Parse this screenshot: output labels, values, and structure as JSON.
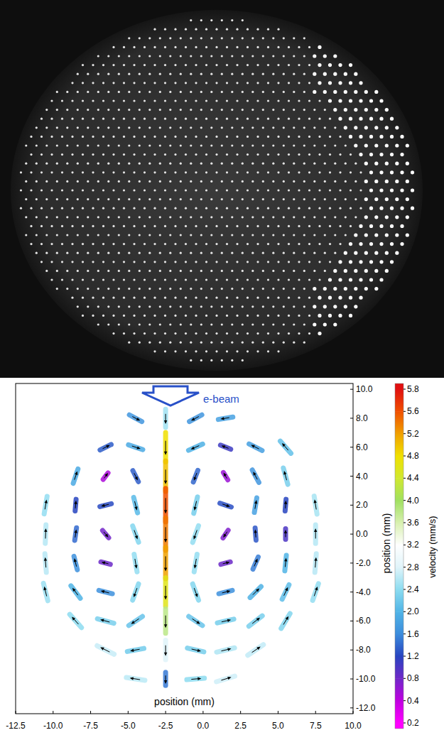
{
  "chart_data": {
    "type": "vector_field",
    "annotation": "e-beam",
    "xlabel": "position (mm)",
    "ylabel": "position (mm)",
    "xlim": [
      -12.5,
      10.0
    ],
    "ylim": [
      -12.4,
      10.4
    ],
    "xticks": [
      {
        "value": -12.5,
        "label": "-12.5"
      },
      {
        "value": -10,
        "label": "-10.0"
      },
      {
        "value": -7.5,
        "label": "-7.5"
      },
      {
        "value": -5,
        "label": "-5.0"
      },
      {
        "value": -2.5,
        "label": "-2.5"
      },
      {
        "value": 0,
        "label": "0.0"
      },
      {
        "value": 2.5,
        "label": "2.5"
      },
      {
        "value": 5,
        "label": "5.0"
      },
      {
        "value": 7.5,
        "label": "7.5"
      },
      {
        "value": 10,
        "label": "10.0"
      }
    ],
    "yticks": [
      {
        "value": 10,
        "label": "10.0"
      },
      {
        "value": 8,
        "label": "8.0"
      },
      {
        "value": 6,
        "label": "6.0"
      },
      {
        "value": 4,
        "label": "4.0"
      },
      {
        "value": 2,
        "label": "2.0"
      },
      {
        "value": 0,
        "label": "0.0"
      },
      {
        "value": -2,
        "label": "-2.0"
      },
      {
        "value": -4,
        "label": "-4.0"
      },
      {
        "value": -6,
        "label": "-6.0"
      },
      {
        "value": -8,
        "label": "-8.0"
      },
      {
        "value": -10,
        "label": "-10.0"
      },
      {
        "value": -12,
        "label": "-12.0"
      }
    ],
    "vectors": {
      "x": [
        -4.5,
        -2.5,
        -0.5,
        1.5,
        -6.5,
        -4.5,
        -2.5,
        -0.5,
        1.5,
        3.5,
        5.5,
        -8.5,
        -6.5,
        -4.5,
        -2.5,
        -0.5,
        1.5,
        3.5,
        5.5,
        -10.5,
        -8.5,
        -6.5,
        -4.5,
        -2.5,
        -0.5,
        1.5,
        3.5,
        5.5,
        7.5,
        -10.5,
        -8.5,
        -6.5,
        -4.5,
        -2.5,
        -0.5,
        1.5,
        3.5,
        5.5,
        7.5,
        -10.5,
        -8.5,
        -6.5,
        -4.5,
        -2.5,
        -0.5,
        1.5,
        3.5,
        5.5,
        7.5,
        -10.5,
        -8.5,
        -6.5,
        -4.5,
        -2.5,
        -0.5,
        1.5,
        3.5,
        5.5,
        7.5,
        -8.5,
        -6.5,
        -4.5,
        -2.5,
        -0.5,
        1.5,
        3.5,
        5.5,
        -6.5,
        -4.5,
        -2.5,
        -0.5,
        1.5,
        3.5,
        -4.5,
        -2.5,
        -0.5,
        1.5
      ],
      "y": [
        8,
        8,
        8,
        8,
        6,
        6,
        6,
        6,
        6,
        6,
        6,
        4,
        4,
        4,
        4,
        4,
        4,
        4,
        4,
        2,
        2,
        2,
        2,
        2,
        2,
        2,
        2,
        2,
        2,
        0,
        0,
        0,
        0,
        0,
        0,
        0,
        0,
        0,
        0,
        -2,
        -2,
        -2,
        -2,
        -2,
        -2,
        -2,
        -2,
        -2,
        -2,
        -4,
        -4,
        -4,
        -4,
        -4,
        -4,
        -4,
        -4,
        -4,
        -4,
        -6,
        -6,
        -6,
        -6,
        -6,
        -6,
        -6,
        -6,
        -8,
        -8,
        -8,
        -8,
        -8,
        -8,
        -10,
        -10,
        -10,
        -10
      ],
      "vx": [
        1.5,
        0,
        -1.5,
        -1.8,
        1.2,
        1.8,
        0,
        -1.8,
        -1.0,
        -1.6,
        -1.4,
        0.6,
        0.3,
        0.6,
        0,
        -0.5,
        -0.3,
        -0.8,
        -0.6,
        0.4,
        0.1,
        -1.2,
        0.5,
        0,
        -0.5,
        1.2,
        0.3,
        0.1,
        -0.4,
        0.1,
        0.2,
        0.5,
        0.8,
        0,
        -0.8,
        -0.4,
        -0.1,
        0,
        0,
        -0.2,
        -0.4,
        -0.8,
        0.4,
        0,
        -0.4,
        0.8,
        0.6,
        0.2,
        0.2,
        -0.6,
        -1.2,
        -1.6,
        -0.8,
        0,
        0.8,
        1.6,
        1.4,
        0.9,
        0.8,
        -1.6,
        -2.2,
        -1.8,
        0,
        1.8,
        2.2,
        1.8,
        1.2,
        -2.4,
        -2.2,
        0,
        2.2,
        2.5,
        2.2,
        -2.6,
        0,
        2.4,
        2.6
      ],
      "vy": [
        -0.8,
        -2.5,
        -0.8,
        -0.3,
        0.6,
        -0.6,
        -4.8,
        -0.8,
        0.4,
        0.8,
        1.6,
        1.8,
        0.4,
        -1.2,
        -5.0,
        -1.3,
        0.5,
        1.5,
        2.2,
        2.4,
        1.2,
        -0.3,
        -2.0,
        -5.6,
        -2.2,
        -0.4,
        1.8,
        1.2,
        2.5,
        2.6,
        1.4,
        -0.6,
        -2.2,
        -5.4,
        -2.3,
        -0.6,
        1.3,
        1.0,
        2.6,
        2.6,
        1.6,
        0.2,
        -2.4,
        -5.2,
        -2.4,
        0.2,
        1.4,
        2.0,
        2.6,
        2.4,
        1.6,
        0.4,
        -2.2,
        -4.6,
        -2.2,
        0.4,
        1.4,
        1.9,
        2.3,
        1.8,
        0.6,
        -1.2,
        -3.8,
        -1.2,
        0.5,
        1.4,
        2.0,
        1.2,
        -0.4,
        -2.8,
        -0.5,
        0.6,
        1.5,
        0.4,
        -1.5,
        0.2,
        0.8
      ]
    },
    "colorbar": {
      "label": "velocity (mm/s)",
      "ticks": [
        0.2,
        0.4,
        0.8,
        1.2,
        1.6,
        {
          "value": 2,
          "label": "2.0"
        },
        2.4,
        2.8,
        3.2,
        3.6,
        {
          "value": 4,
          "label": "4.0"
        },
        4.4,
        4.8,
        5.2,
        5.6,
        5.8
      ],
      "colors": [
        "#ff00ff",
        "#c000e0",
        "#7028c8",
        "#2844c0",
        "#3c8cdc",
        "#50b4e6",
        "#8cdcf0",
        "#e0f4fa",
        "#ffffff",
        "#d8f0b0",
        "#a0e060",
        "#d0e830",
        "#f0e000",
        "#f0a000",
        "#f05000",
        "#e01010"
      ]
    }
  }
}
